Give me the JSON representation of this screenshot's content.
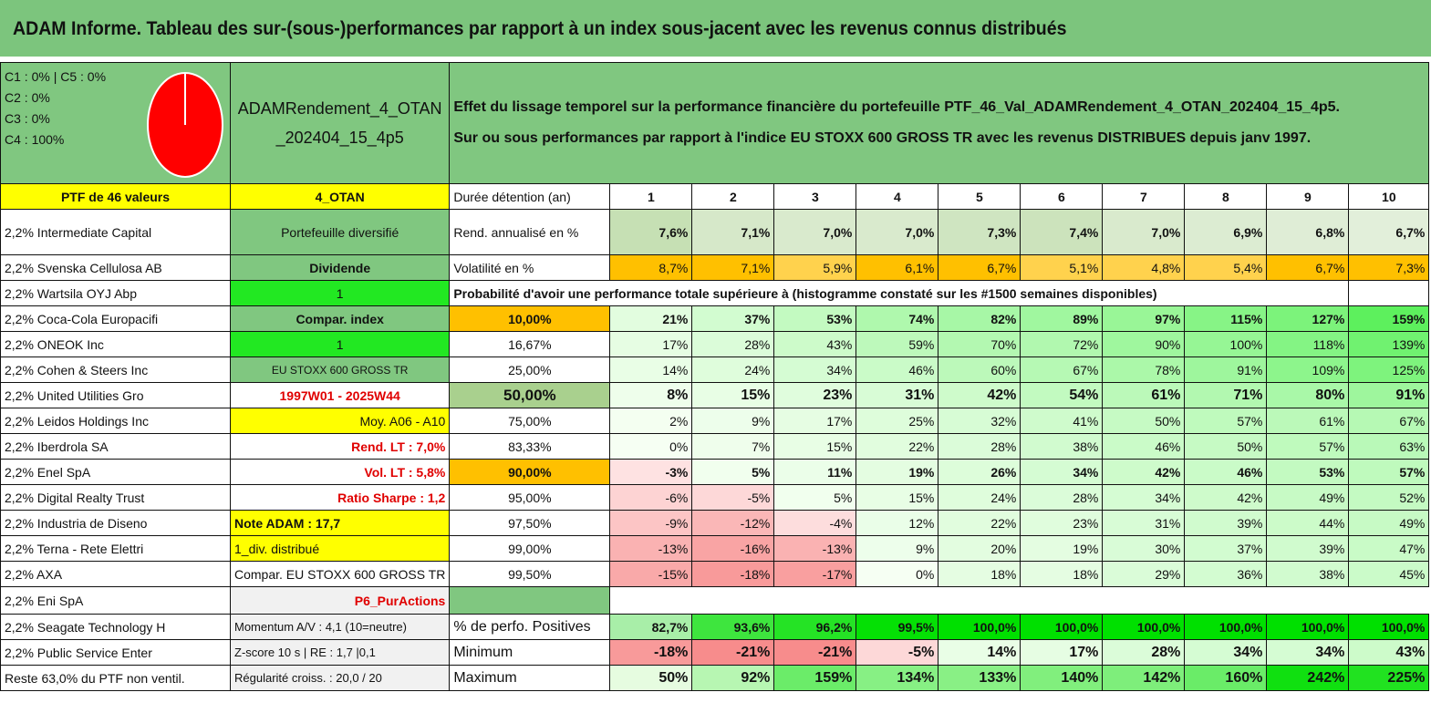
{
  "title": "ADAM Informe. Tableau des sur-(sous-)performances par rapport à un index sous-jacent avec les revenus connus distribués",
  "legend": [
    "C1 : 0% | C5 : 0%",
    "C2 : 0%",
    "C3 : 0%",
    "C4 : 100%"
  ],
  "pie": {
    "C1": 0,
    "C2": 0,
    "C3": 0,
    "C4": 100,
    "C5": 0,
    "color": "#ff0000"
  },
  "portfolio_name": "ADAMRendement_4_OTAN _202404_15_4p5",
  "description": [
    "Effet du lissage temporel sur la performance financière du portefeuille PTF_46_Val_ADAMRendement_4_OTAN_202404_15_4p5.",
    "Sur ou sous performances par rapport à l'indice EU STOXX 600 GROSS TR avec les revenus DISTRIBUES depuis janv 1997."
  ],
  "colors": {
    "header_green": "#80c780",
    "orange": "#ffc000",
    "yellow": "#ffff00",
    "bright_green": "#22e822",
    "red_text": "#e00000"
  },
  "years": [
    "1",
    "2",
    "3",
    "4",
    "5",
    "6",
    "7",
    "8",
    "9",
    "10"
  ],
  "rows": [
    {
      "a": "PTF de 46 valeurs",
      "b": "4_OTAN",
      "c": "Durée détention (an)",
      "type": "years"
    },
    {
      "a": "2,2% Intermediate Capital",
      "b": "Portefeuille diversifié",
      "c": "Rend. annualisé en %",
      "type": "rend",
      "vals": [
        "7,6%",
        "7,1%",
        "7,0%",
        "7,0%",
        "7,3%",
        "7,4%",
        "7,0%",
        "6,9%",
        "6,8%",
        "6,7%"
      ]
    },
    {
      "a": "2,2% Svenska Cellulosa AB",
      "b": "Dividende",
      "c": "Volatilité en %",
      "type": "vol",
      "vals": [
        "8,7%",
        "7,1%",
        "5,9%",
        "6,1%",
        "6,7%",
        "5,1%",
        "4,8%",
        "5,4%",
        "6,7%",
        "7,3%"
      ]
    },
    {
      "a": "2,2% Wartsila OYJ Abp",
      "b": "1",
      "c": "Probabilité d'avoir une performance totale supérieure à (histogramme constaté sur les #1500 semaines disponibles)",
      "type": "prob_title"
    },
    {
      "a": "2,2% Coca-Cola Europacifi",
      "b": "Compar. index",
      "c": "10,00%",
      "type": "heat",
      "bold": true,
      "vals": [
        "21%",
        "37%",
        "53%",
        "74%",
        "82%",
        "89%",
        "97%",
        "115%",
        "127%",
        "159%"
      ]
    },
    {
      "a": "2,2% ONEOK Inc",
      "b": "1",
      "c": "16,67%",
      "type": "heat",
      "vals": [
        "17%",
        "28%",
        "43%",
        "59%",
        "70%",
        "72%",
        "90%",
        "100%",
        "118%",
        "139%"
      ]
    },
    {
      "a": "2,2% Cohen & Steers Inc",
      "b": "EU STOXX 600 GROSS TR",
      "c": "25,00%",
      "type": "heat",
      "vals": [
        "14%",
        "24%",
        "34%",
        "46%",
        "60%",
        "67%",
        "78%",
        "91%",
        "109%",
        "125%"
      ]
    },
    {
      "a": "2,2% United Utilities Gro",
      "b": "1997W01 - 2025W44",
      "c": "50,00%",
      "type": "heat",
      "bold": true,
      "big": true,
      "vals": [
        "8%",
        "15%",
        "23%",
        "31%",
        "42%",
        "54%",
        "61%",
        "71%",
        "80%",
        "91%"
      ]
    },
    {
      "a": "2,2% Leidos Holdings Inc",
      "b": "Moy. A06 - A10",
      "c": "75,00%",
      "type": "heat",
      "vals": [
        "2%",
        "9%",
        "17%",
        "25%",
        "32%",
        "41%",
        "50%",
        "57%",
        "61%",
        "67%"
      ]
    },
    {
      "a": "2,2% Iberdrola SA",
      "b": "Rend. LT : 7,0%",
      "c": "83,33%",
      "type": "heat",
      "vals": [
        "0%",
        "7%",
        "15%",
        "22%",
        "28%",
        "38%",
        "46%",
        "50%",
        "57%",
        "63%"
      ]
    },
    {
      "a": "2,2% Enel SpA",
      "b": "Vol. LT : 5,8%",
      "c": "90,00%",
      "type": "heat",
      "bold": true,
      "vals": [
        "-3%",
        "5%",
        "11%",
        "19%",
        "26%",
        "34%",
        "42%",
        "46%",
        "53%",
        "57%"
      ]
    },
    {
      "a": "2,2% Digital Realty Trust",
      "b": "Ratio Sharpe : 1,2",
      "c": "95,00%",
      "type": "heat",
      "vals": [
        "-6%",
        "-5%",
        "5%",
        "15%",
        "24%",
        "28%",
        "34%",
        "42%",
        "49%",
        "52%"
      ]
    },
    {
      "a": "2,2% Industria de Diseno",
      "b": "Note ADAM : 17,7",
      "c": "97,50%",
      "type": "heat",
      "vals": [
        "-9%",
        "-12%",
        "-4%",
        "12%",
        "22%",
        "23%",
        "31%",
        "39%",
        "44%",
        "49%"
      ]
    },
    {
      "a": "2,2% Terna - Rete Elettri",
      "b": "1_div. distribué",
      "c": "99,00%",
      "type": "heat",
      "vals": [
        "-13%",
        "-16%",
        "-13%",
        "9%",
        "20%",
        "19%",
        "30%",
        "37%",
        "39%",
        "47%"
      ]
    },
    {
      "a": "2,2% AXA",
      "b": "Compar. EU STOXX 600 GROSS TR",
      "c": "99,50%",
      "type": "heat",
      "vals": [
        "-15%",
        "-18%",
        "-17%",
        "0%",
        "18%",
        "18%",
        "29%",
        "36%",
        "38%",
        "45%"
      ]
    },
    {
      "a": "2,2% Eni SpA",
      "b": "P6_PurActions",
      "c": "",
      "type": "empty"
    },
    {
      "a": "2,2% Seagate Technology H",
      "b": "Momentum A/V : 4,1 (10=neutre)",
      "c": "% de perfo. Positives",
      "type": "pos",
      "bold": true,
      "vals": [
        "82,7%",
        "93,6%",
        "96,2%",
        "99,5%",
        "100,0%",
        "100,0%",
        "100,0%",
        "100,0%",
        "100,0%",
        "100,0%"
      ]
    },
    {
      "a": "2,2% Public Service Enter",
      "b": "Z-score 10 s | RE : 1,7 |0,1",
      "c": "Minimum",
      "type": "heat",
      "bold": true,
      "big": true,
      "vals": [
        "-18%",
        "-21%",
        "-21%",
        "-5%",
        "14%",
        "17%",
        "28%",
        "34%",
        "34%",
        "43%"
      ]
    },
    {
      "a": "Reste 63,0% du PTF non ventil.",
      "b": "Régularité croiss. : 20,0 / 20",
      "c": "Maximum",
      "type": "max",
      "bold": true,
      "big": true,
      "vals": [
        "50%",
        "92%",
        "159%",
        "134%",
        "133%",
        "140%",
        "142%",
        "160%",
        "242%",
        "225%"
      ]
    }
  ]
}
